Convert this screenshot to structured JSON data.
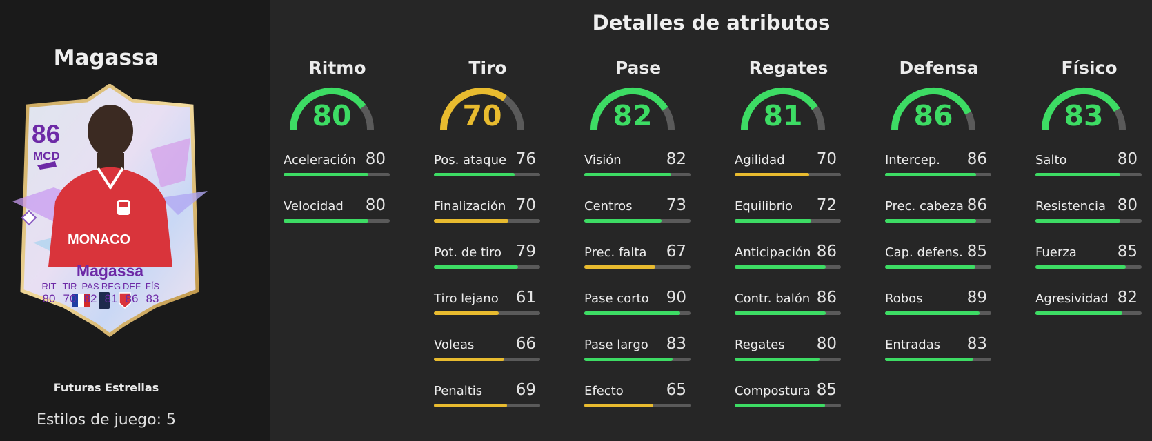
{
  "player": {
    "name": "Magassa",
    "edition": "Futuras Estrellas",
    "playstyles": "Estilos de juego: 5"
  },
  "card": {
    "rating": "86",
    "position": "MCD",
    "name": "Magassa",
    "sponsor": "MONACO",
    "stats": [
      {
        "label": "RIT",
        "value": "80"
      },
      {
        "label": "TIR",
        "value": "70"
      },
      {
        "label": "PAS",
        "value": "82"
      },
      {
        "label": "REG",
        "value": "81"
      },
      {
        "label": "DEF",
        "value": "86"
      },
      {
        "label": "FÍS",
        "value": "83"
      }
    ]
  },
  "attributes_title": "Detalles de atributos",
  "colors": {
    "green": "#3ddc64",
    "yellow": "#e8bb2f",
    "track": "#5a5a5a"
  },
  "categories": [
    {
      "name": "Ritmo",
      "value": 80,
      "color": "green",
      "stats": [
        {
          "label": "Aceleración",
          "value": 80,
          "color": "green"
        },
        {
          "label": "Velocidad",
          "value": 80,
          "color": "green"
        }
      ]
    },
    {
      "name": "Tiro",
      "value": 70,
      "color": "yellow",
      "stats": [
        {
          "label": "Pos. ataque",
          "value": 76,
          "color": "green"
        },
        {
          "label": "Finalización",
          "value": 70,
          "color": "yellow"
        },
        {
          "label": "Pot. de tiro",
          "value": 79,
          "color": "green"
        },
        {
          "label": "Tiro lejano",
          "value": 61,
          "color": "yellow"
        },
        {
          "label": "Voleas",
          "value": 66,
          "color": "yellow"
        },
        {
          "label": "Penaltis",
          "value": 69,
          "color": "yellow"
        }
      ]
    },
    {
      "name": "Pase",
      "value": 82,
      "color": "green",
      "stats": [
        {
          "label": "Visión",
          "value": 82,
          "color": "green"
        },
        {
          "label": "Centros",
          "value": 73,
          "color": "green"
        },
        {
          "label": "Prec. falta",
          "value": 67,
          "color": "yellow"
        },
        {
          "label": "Pase corto",
          "value": 90,
          "color": "green"
        },
        {
          "label": "Pase largo",
          "value": 83,
          "color": "green"
        },
        {
          "label": "Efecto",
          "value": 65,
          "color": "yellow"
        }
      ]
    },
    {
      "name": "Regates",
      "value": 81,
      "color": "green",
      "stats": [
        {
          "label": "Agilidad",
          "value": 70,
          "color": "yellow"
        },
        {
          "label": "Equilibrio",
          "value": 72,
          "color": "green"
        },
        {
          "label": "Anticipación",
          "value": 86,
          "color": "green"
        },
        {
          "label": "Contr. balón",
          "value": 86,
          "color": "green"
        },
        {
          "label": "Regates",
          "value": 80,
          "color": "green"
        },
        {
          "label": "Compostura",
          "value": 85,
          "color": "green"
        }
      ]
    },
    {
      "name": "Defensa",
      "value": 86,
      "color": "green",
      "stats": [
        {
          "label": "Intercep.",
          "value": 86,
          "color": "green"
        },
        {
          "label": "Prec. cabeza",
          "value": 86,
          "color": "green"
        },
        {
          "label": "Cap. defens.",
          "value": 85,
          "color": "green"
        },
        {
          "label": "Robos",
          "value": 89,
          "color": "green"
        },
        {
          "label": "Entradas",
          "value": 83,
          "color": "green"
        }
      ]
    },
    {
      "name": "Físico",
      "value": 83,
      "color": "green",
      "stats": [
        {
          "label": "Salto",
          "value": 80,
          "color": "green"
        },
        {
          "label": "Resistencia",
          "value": 80,
          "color": "green"
        },
        {
          "label": "Fuerza",
          "value": 85,
          "color": "green"
        },
        {
          "label": "Agresividad",
          "value": 82,
          "color": "green"
        }
      ]
    }
  ]
}
